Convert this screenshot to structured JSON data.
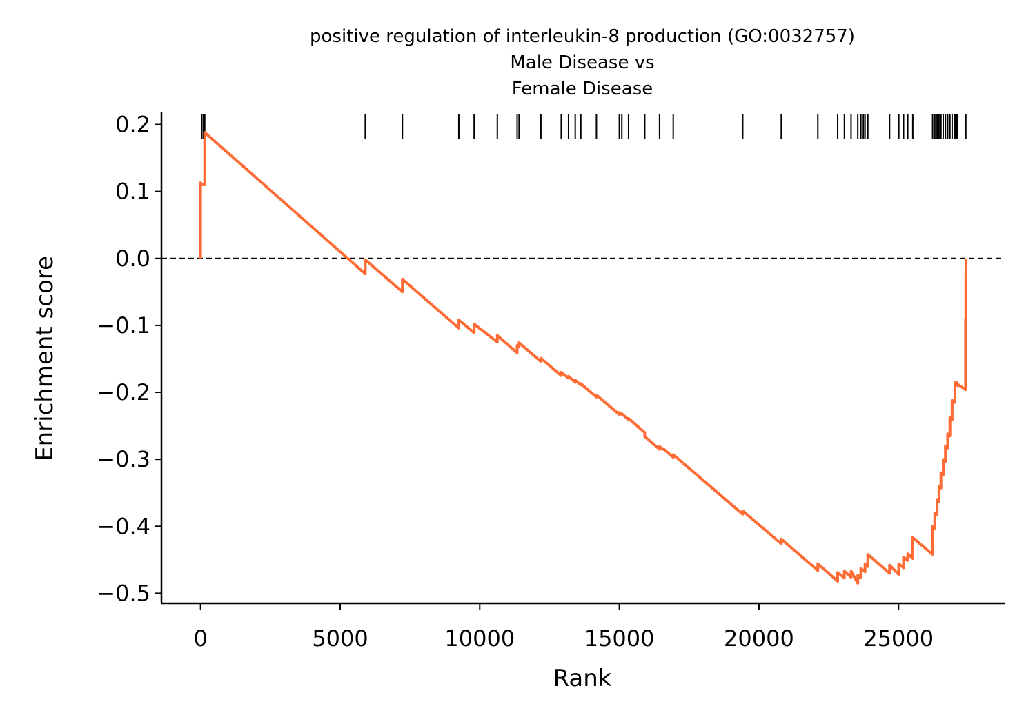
{
  "chart_data": {
    "type": "line",
    "title": "positive regulation of interleukin-8 production (GO:0032757)\nMale Disease vs\nFemale Disease",
    "title_lines": [
      "positive regulation of interleukin-8 production (GO:0032757)",
      "Male Disease vs",
      "Female Disease"
    ],
    "xlabel": "Rank",
    "ylabel": "Enrichment score",
    "xlim": [
      -1400,
      28800
    ],
    "ylim": [
      -0.515,
      0.218
    ],
    "xticks": [
      0,
      5000,
      10000,
      15000,
      20000,
      25000
    ],
    "xtick_labels": [
      "0",
      "5000",
      "10000",
      "15000",
      "20000",
      "25000"
    ],
    "yticks": [
      0.2,
      0.1,
      0.0,
      -0.1,
      -0.2,
      -0.3,
      -0.4,
      -0.5
    ],
    "ytick_labels": [
      "0.2",
      "0.1",
      "0.0",
      "−0.1",
      "−0.2",
      "−0.3",
      "−0.4",
      "−0.5"
    ],
    "grid": false,
    "zero_line": {
      "y": 0.0,
      "style": "dashed",
      "color": "#000000"
    },
    "series": [
      {
        "color": "#ff6b35",
        "x": [
          0,
          0,
          50,
          50,
          150,
          150,
          5900,
          5900,
          7230,
          7230,
          9250,
          9250,
          9800,
          9800,
          10630,
          10630,
          11340,
          11340,
          11410,
          11410,
          12190,
          12190,
          12920,
          12920,
          13180,
          13180,
          13420,
          13420,
          13620,
          13620,
          14180,
          14180,
          15000,
          15000,
          15090,
          15090,
          15330,
          15330,
          15910,
          15910,
          16440,
          16440,
          16570,
          16570,
          16930,
          16930,
          19420,
          19420,
          20800,
          20800,
          22110,
          22110,
          22820,
          22820,
          23060,
          23060,
          23300,
          23300,
          23540,
          23540,
          23650,
          23650,
          23800,
          23800,
          23900,
          23900,
          24680,
          24680,
          25010,
          25010,
          25180,
          25180,
          25330,
          25330,
          25510,
          25510,
          26220,
          26220,
          26300,
          26300,
          26380,
          26380,
          26450,
          26450,
          26520,
          26520,
          26600,
          26600,
          26680,
          26680,
          26760,
          26760,
          26840,
          26840,
          26920,
          26920,
          27020,
          27020,
          27070,
          27070,
          27120,
          27120,
          27400,
          27400,
          27410,
          27410,
          27420
        ],
        "y": [
          0.0,
          0.113,
          0.11,
          0.11,
          0.11,
          0.188,
          -0.023,
          -0.002,
          -0.05,
          -0.031,
          -0.104,
          -0.092,
          -0.111,
          -0.098,
          -0.125,
          -0.115,
          -0.141,
          -0.13,
          -0.132,
          -0.126,
          -0.154,
          -0.149,
          -0.175,
          -0.17,
          -0.179,
          -0.176,
          -0.185,
          -0.182,
          -0.189,
          -0.187,
          -0.207,
          -0.204,
          -0.233,
          -0.23,
          -0.233,
          -0.232,
          -0.241,
          -0.239,
          -0.26,
          -0.266,
          -0.285,
          -0.281,
          -0.285,
          -0.284,
          -0.297,
          -0.293,
          -0.382,
          -0.377,
          -0.426,
          -0.419,
          -0.466,
          -0.456,
          -0.482,
          -0.469,
          -0.477,
          -0.467,
          -0.476,
          -0.467,
          -0.485,
          -0.473,
          -0.477,
          -0.463,
          -0.468,
          -0.456,
          -0.46,
          -0.442,
          -0.47,
          -0.458,
          -0.472,
          -0.456,
          -0.462,
          -0.446,
          -0.451,
          -0.441,
          -0.448,
          -0.417,
          -0.442,
          -0.4,
          -0.403,
          -0.38,
          -0.383,
          -0.36,
          -0.363,
          -0.34,
          -0.343,
          -0.32,
          -0.323,
          -0.3,
          -0.303,
          -0.28,
          -0.283,
          -0.262,
          -0.265,
          -0.238,
          -0.241,
          -0.212,
          -0.215,
          -0.185,
          -0.187,
          -0.185,
          -0.19,
          -0.188,
          -0.196,
          -0.09,
          -0.091,
          -0.03,
          0.0
        ]
      }
    ],
    "hit_ranks": [
      40,
      100,
      150,
      5900,
      7230,
      9250,
      9800,
      10630,
      11340,
      11410,
      12190,
      12920,
      13180,
      13420,
      13620,
      14180,
      15000,
      15090,
      15330,
      15910,
      16440,
      16930,
      19420,
      20800,
      22110,
      22820,
      23060,
      23300,
      23540,
      23650,
      23740,
      23800,
      23900,
      24680,
      25010,
      25180,
      25330,
      25510,
      26220,
      26300,
      26380,
      26450,
      26520,
      26600,
      26680,
      26760,
      26840,
      26920,
      27020,
      27070,
      27120,
      27400,
      27410
    ]
  }
}
